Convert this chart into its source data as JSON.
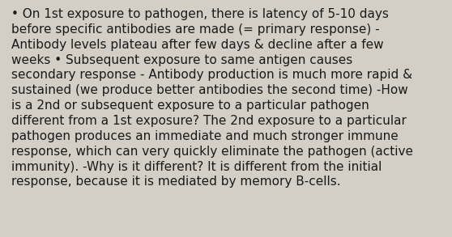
{
  "background_color": "#d3cfc7",
  "text_color": "#1a1a1a",
  "lines": [
    "• On 1st exposure to pathogen, there is latency of 5-10 days",
    "before specific antibodies are made (= primary response) -",
    "Antibody levels plateau after few days & decline after a few",
    "weeks • Subsequent exposure to same antigen causes",
    "secondary response - Antibody production is much more rapid &",
    "sustained (we produce better antibodies the second time) -How",
    "is a 2nd or subsequent exposure to a particular pathogen",
    "different from a 1st exposure? The 2nd exposure to a particular",
    "pathogen produces an immediate and much stronger immune",
    "response, which can very quickly eliminate the pathogen (active",
    "immunity). -Why is it different? It is different from the initial",
    "response, because it is mediated by memory B-cells."
  ],
  "font_size": 11.0,
  "font_family": "DejaVu Sans",
  "fig_width": 5.58,
  "fig_height": 2.93,
  "dpi": 100
}
